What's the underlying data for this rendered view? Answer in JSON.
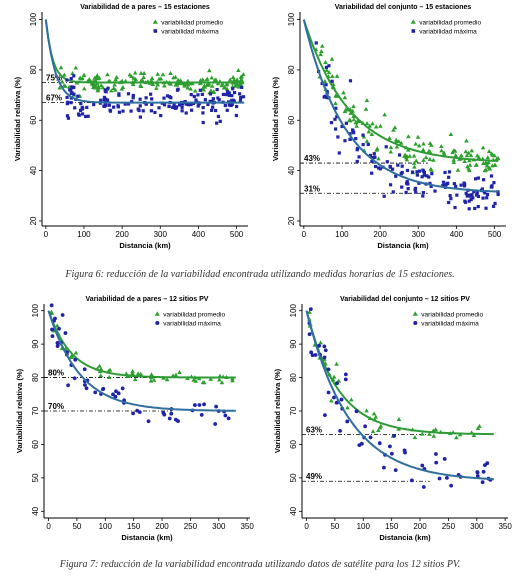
{
  "colors": {
    "promedio_points": "#2ca02c",
    "promedio_fit": "#2e9b36",
    "maxima_points": "#1f23a8",
    "maxima_fit": "#2f6fa0",
    "axis": "#000000",
    "refline": "#000000"
  },
  "captions": {
    "figure6": "Figura 6: reducción de la variabilidad encontrada utilizando medidas horarias de 15 estaciones.",
    "figure7": "Figura 7: reducción de la variabilidad encontrada utilizando datos de satélite para los 12 sitios PV."
  },
  "chart_data": [
    {
      "type": "scatter",
      "title": "Variabilidad de a pares – 15 estaciones",
      "xlabel": "Distancia (km)",
      "ylabel": "Variabilidad relativa (%)",
      "xlim": [
        -10,
        530
      ],
      "ylim": [
        18,
        103
      ],
      "xticks": [
        0,
        100,
        200,
        300,
        400,
        500
      ],
      "yticks": [
        20,
        40,
        60,
        80,
        100
      ],
      "legend": {
        "position": "top-right",
        "entries": [
          "variabilidad promedio",
          "variabilidad máxima"
        ]
      },
      "series": [
        {
          "name": "variabilidad promedio",
          "marker": "triangle",
          "fit": {
            "start": 100,
            "plateau": 75,
            "decay_km": 18
          },
          "x_range": [
            0,
            520
          ],
          "noise": 3
        },
        {
          "name": "variabilidad máxima",
          "marker": "square",
          "fit": {
            "start": 100,
            "plateau": 67,
            "decay_km": 25
          },
          "x_range": [
            0,
            520
          ],
          "noise": 4.5
        }
      ],
      "reference_lines": [
        {
          "label": "75%",
          "y": 75
        },
        {
          "label": "67%",
          "y": 67
        }
      ]
    },
    {
      "type": "scatter",
      "title": "Variabilidad del conjunto – 15 estaciones",
      "xlabel": "Distancia (km)",
      "ylabel": "Variabilidad relativa (%)",
      "xlim": [
        -10,
        530
      ],
      "ylim": [
        18,
        103
      ],
      "xticks": [
        0,
        100,
        200,
        300,
        400,
        500
      ],
      "yticks": [
        20,
        40,
        60,
        80,
        100
      ],
      "legend": {
        "position": "top-right",
        "entries": [
          "variabilidad promedio",
          "variabilidad máxima"
        ]
      },
      "series": [
        {
          "name": "variabilidad promedio",
          "marker": "triangle",
          "fit": {
            "start": 100,
            "plateau": 43,
            "decay_km": 120
          },
          "x_range": [
            0,
            510
          ],
          "noise": 3.5
        },
        {
          "name": "variabilidad máxima",
          "marker": "square",
          "fit": {
            "start": 100,
            "plateau": 31,
            "decay_km": 110
          },
          "x_range": [
            0,
            510
          ],
          "noise": 4.5
        }
      ],
      "reference_lines": [
        {
          "label": "43%",
          "y": 43
        },
        {
          "label": "31%",
          "y": 31
        }
      ]
    },
    {
      "type": "scatter",
      "title": "Variabilidad de a pares – 12 sitios PV",
      "xlabel": "Distancia (km)",
      "ylabel": "Variabilidad relativa (%)",
      "xlim": [
        -8,
        355
      ],
      "ylim": [
        38,
        102
      ],
      "xticks": [
        0,
        50,
        100,
        150,
        200,
        250,
        300,
        350
      ],
      "yticks": [
        40,
        50,
        60,
        70,
        80,
        90,
        100
      ],
      "legend": {
        "position": "top-right",
        "entries": [
          "variabilidad promedio",
          "variabilidad máxima"
        ]
      },
      "series": [
        {
          "name": "variabilidad promedio",
          "marker": "triangle",
          "fit": {
            "start": 100,
            "plateau": 80,
            "decay_km": 40
          },
          "x_range": [
            0,
            330
          ],
          "noise": 1.5
        },
        {
          "name": "variabilidad máxima",
          "marker": "circle",
          "fit": {
            "start": 100,
            "plateau": 70,
            "decay_km": 55
          },
          "x_range": [
            0,
            330
          ],
          "noise": 3
        }
      ],
      "reference_lines": [
        {
          "label": "80%",
          "y": 80
        },
        {
          "label": "70%",
          "y": 70
        }
      ]
    },
    {
      "type": "scatter",
      "title": "Variabilidad del conjunto – 12 sitios PV",
      "xlabel": "Distancia (km)",
      "ylabel": "Variabilidad relativa (%)",
      "xlim": [
        -8,
        355
      ],
      "ylim": [
        38,
        102
      ],
      "xticks": [
        0,
        50,
        100,
        150,
        200,
        250,
        300,
        350
      ],
      "yticks": [
        40,
        50,
        60,
        70,
        80,
        90,
        100
      ],
      "legend": {
        "position": "top-right",
        "entries": [
          "variabilidad promedio",
          "variabilidad máxima"
        ]
      },
      "series": [
        {
          "name": "variabilidad promedio",
          "marker": "triangle",
          "fit": {
            "start": 100,
            "plateau": 63,
            "decay_km": 55
          },
          "x_range": [
            0,
            330
          ],
          "noise": 2
        },
        {
          "name": "variabilidad máxima",
          "marker": "circle",
          "fit": {
            "start": 100,
            "plateau": 49,
            "decay_km": 75
          },
          "x_range": [
            0,
            330
          ],
          "noise": 3.5
        }
      ],
      "reference_lines": [
        {
          "label": "63%",
          "y": 63
        },
        {
          "label": "49%",
          "y": 49
        }
      ]
    }
  ]
}
